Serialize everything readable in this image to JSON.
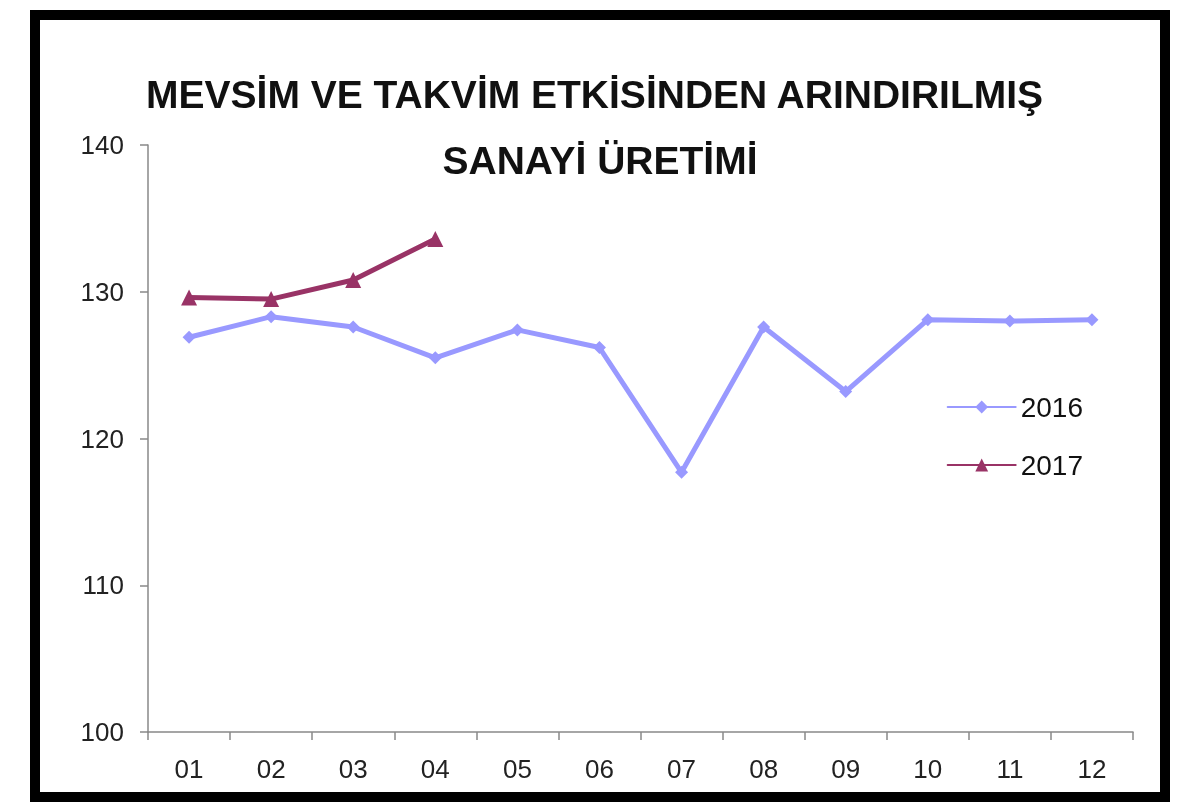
{
  "chart_data": {
    "type": "line",
    "title": "MEVSİM VE TAKVİM ETKİSİNDEN ARINDIRILMIŞ SANAYİ ÜRETİMİ",
    "categories": [
      "01",
      "02",
      "03",
      "04",
      "05",
      "06",
      "07",
      "08",
      "09",
      "10",
      "11",
      "12"
    ],
    "series": [
      {
        "name": "2016",
        "color": "#9999ff",
        "marker": "diamond",
        "values": [
          126.9,
          128.3,
          127.6,
          125.5,
          127.4,
          126.2,
          117.7,
          127.6,
          123.2,
          128.1,
          128.0,
          128.1
        ]
      },
      {
        "name": "2017",
        "color": "#993366",
        "marker": "triangle",
        "values": [
          129.6,
          129.5,
          130.8,
          133.6,
          null,
          null,
          null,
          null,
          null,
          null,
          null,
          null
        ]
      }
    ],
    "ylim": [
      100,
      140
    ],
    "yticks": [
      100,
      110,
      120,
      130,
      140
    ],
    "grid": false,
    "legend": "right",
    "line_style": "solid"
  }
}
